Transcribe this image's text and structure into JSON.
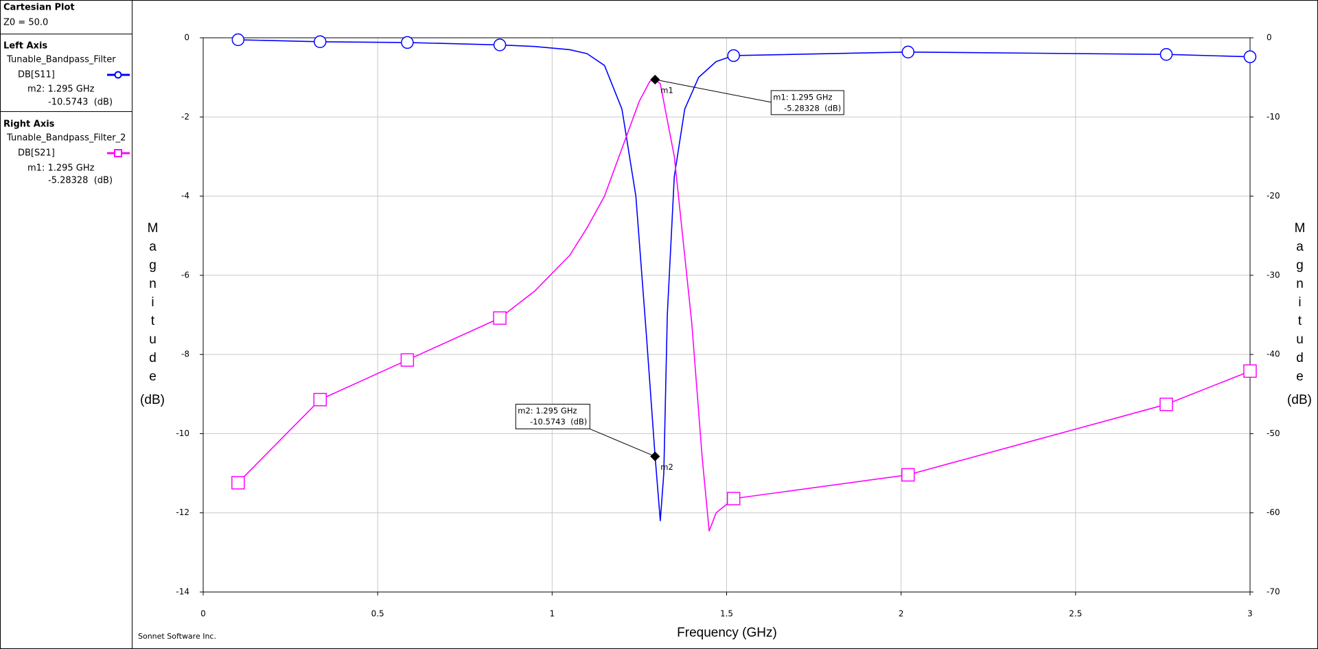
{
  "chart_data": {
    "type": "line",
    "panel_title": "Cartesian Plot",
    "z0": "Z0 = 50.0",
    "credit": "Sonnet Software Inc.",
    "xlabel": "Frequency (GHz)",
    "ylabel": "Magnitude",
    "ylabel_unit": "(dB)",
    "y2label": "Magnitude",
    "y2label_unit": "(dB)",
    "xlim": [
      0,
      3
    ],
    "xticks": [
      0,
      0.5,
      1,
      1.5,
      2,
      2.5,
      3
    ],
    "ylim": [
      -14,
      0
    ],
    "yticks": [
      -14,
      -12,
      -10,
      -8,
      -6,
      -4,
      -2,
      0
    ],
    "y2lim": [
      -70,
      0
    ],
    "y2ticks": [
      -70,
      -60,
      -50,
      -40,
      -30,
      -20,
      -10,
      0
    ],
    "grid": true,
    "series": [
      {
        "axis_title": "Left Axis",
        "group": "Tunable_Bandpass_Filter",
        "name": "DB[S11]",
        "color": "#0000ff",
        "symbol": "circle",
        "axis": "y",
        "x": [
          0.1,
          0.335,
          0.585,
          0.85,
          0.95,
          1.05,
          1.1,
          1.15,
          1.2,
          1.24,
          1.27,
          1.295,
          1.31,
          1.32,
          1.33,
          1.35,
          1.38,
          1.42,
          1.47,
          1.52,
          2.02,
          2.76,
          3.0
        ],
        "values": [
          -0.05,
          -0.1,
          -0.12,
          -0.18,
          -0.22,
          -0.3,
          -0.4,
          -0.7,
          -1.8,
          -4,
          -7.5,
          -10.5743,
          -12.2,
          -11,
          -7,
          -3.5,
          -1.8,
          -1,
          -0.6,
          -0.45,
          -0.36,
          -0.42,
          -0.48
        ],
        "markers": [
          {
            "name": "m2",
            "x": 1.295,
            "value": -10.5743,
            "label": "m2: 1.295 GHz",
            "value_label": "-10.5743  (dB)"
          }
        ]
      },
      {
        "axis_title": "Right Axis",
        "group": "Tunable_Bandpass_Filter_2",
        "name": "DB[S21]",
        "color": "#ff00ff",
        "symbol": "square",
        "axis": "y2",
        "x": [
          0.1,
          0.335,
          0.585,
          0.85,
          0.95,
          1.05,
          1.1,
          1.15,
          1.2,
          1.25,
          1.28,
          1.295,
          1.31,
          1.35,
          1.4,
          1.43,
          1.45,
          1.47,
          1.52,
          2.02,
          2.76,
          3.0
        ],
        "values": [
          -56.2,
          -45.7,
          -40.7,
          -35.4,
          -32,
          -27.5,
          -24,
          -20,
          -14,
          -8,
          -5.5,
          -5.28328,
          -5.8,
          -15,
          -36,
          -53,
          -62.3,
          -60,
          -58.2,
          -55.2,
          -46.3,
          -42.1
        ],
        "markers": [
          {
            "name": "m1",
            "x": 1.295,
            "value": -5.28328,
            "label": "m1: 1.295 GHz",
            "value_label": "-5.28328  (dB)"
          }
        ]
      }
    ]
  }
}
